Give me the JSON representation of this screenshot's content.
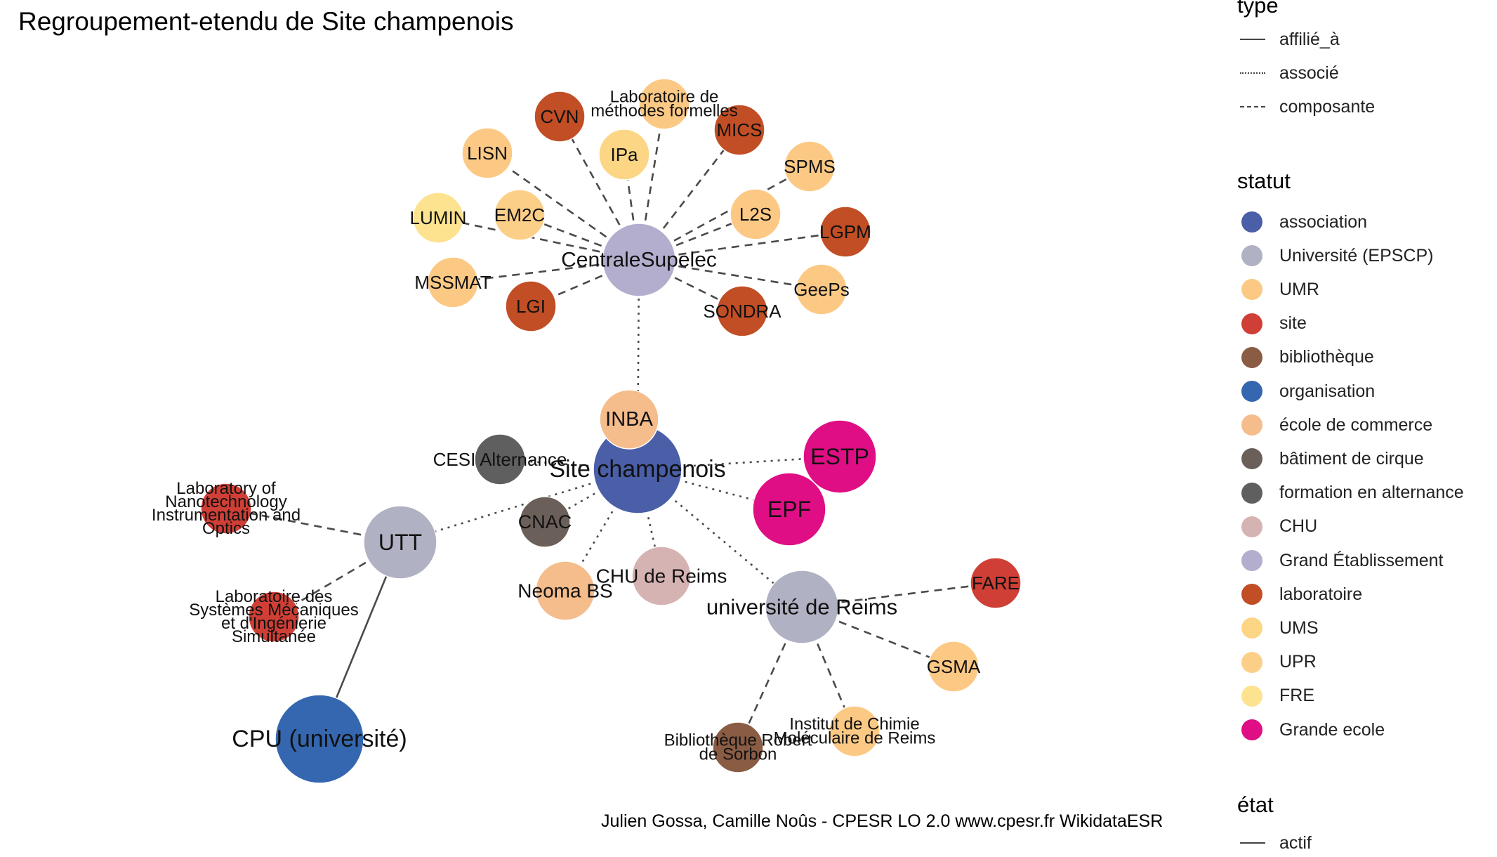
{
  "title": "Regroupement-etendu de Site champenois",
  "caption": "Julien Gossa, Camille Noûs - CPESR LO 2.0 www.cpesr.fr WikidataESR",
  "legend": {
    "type": {
      "title": "type",
      "items": [
        {
          "label": "affilié_à",
          "style": "solid"
        },
        {
          "label": "associé",
          "style": "dotted"
        },
        {
          "label": "composante",
          "style": "dashed"
        }
      ]
    },
    "statut": {
      "title": "statut",
      "items": [
        {
          "label": "association",
          "color": "#4a5fa8"
        },
        {
          "label": "Université (EPSCP)",
          "color": "#b0b1c2"
        },
        {
          "label": "UMR",
          "color": "#fcc985"
        },
        {
          "label": "site",
          "color": "#cf3f36"
        },
        {
          "label": "bibliothèque",
          "color": "#8a5c44"
        },
        {
          "label": "organisation",
          "color": "#3467b0"
        },
        {
          "label": "école de commerce",
          "color": "#f5bc8c"
        },
        {
          "label": "bâtiment de cirque",
          "color": "#6b5f59"
        },
        {
          "label": "formation en alternance",
          "color": "#5f5f5f"
        },
        {
          "label": "CHU",
          "color": "#d5b3b2"
        },
        {
          "label": "Grand Établissement",
          "color": "#b3aecd"
        },
        {
          "label": "laboratoire",
          "color": "#c24e25"
        },
        {
          "label": "UMS",
          "color": "#fcd585"
        },
        {
          "label": "UPR",
          "color": "#fccf88"
        },
        {
          "label": "FRE",
          "color": "#fde290"
        },
        {
          "label": "Grande ecole",
          "color": "#df0e84"
        }
      ]
    },
    "etat": {
      "title": "état",
      "items": [
        {
          "label": "actif",
          "style": "solid"
        }
      ]
    }
  },
  "nodes": [
    {
      "id": "site",
      "lines": [
        "Site champenois"
      ],
      "status": "association",
      "color": "#4a5fa8"
    },
    {
      "id": "centrale",
      "lines": [
        "CentraleSupelec"
      ],
      "status": "Grand Établissement",
      "color": "#b3aecd"
    },
    {
      "id": "utt",
      "lines": [
        "UTT"
      ],
      "status": "Université (EPSCP)",
      "color": "#b0b1c2"
    },
    {
      "id": "reims",
      "lines": [
        "université de Reims"
      ],
      "status": "Université (EPSCP)",
      "color": "#b0b1c2"
    },
    {
      "id": "cpu",
      "lines": [
        "CPU (université)"
      ],
      "status": "organisation",
      "color": "#3467b0"
    },
    {
      "id": "estp",
      "lines": [
        "ESTP"
      ],
      "status": "Grande ecole",
      "color": "#df0e84"
    },
    {
      "id": "epf",
      "lines": [
        "EPF"
      ],
      "status": "Grande ecole",
      "color": "#df0e84"
    },
    {
      "id": "inba",
      "lines": [
        "INBA"
      ],
      "status": "école de commerce",
      "color": "#f5bc8c"
    },
    {
      "id": "neoma",
      "lines": [
        "Neoma BS"
      ],
      "status": "école de commerce",
      "color": "#f5bc8c"
    },
    {
      "id": "chu",
      "lines": [
        "CHU de Reims"
      ],
      "status": "CHU",
      "color": "#d5b3b2"
    },
    {
      "id": "cnac",
      "lines": [
        "CNAC"
      ],
      "status": "bâtiment de cirque",
      "color": "#6b5f59"
    },
    {
      "id": "cesi",
      "lines": [
        "CESI Alternance"
      ],
      "status": "formation en alternance",
      "color": "#5f5f5f"
    },
    {
      "id": "lnio",
      "lines": [
        "Laboratory of",
        "Nanotechnology",
        "Instrumentation and",
        "Optics"
      ],
      "status": "site",
      "color": "#cf3f36"
    },
    {
      "id": "lasmis",
      "lines": [
        "Laboratoire des",
        "Systèmes Mécaniques",
        "et d'Ingénierie",
        "Simultanée"
      ],
      "status": "site",
      "color": "#cf3f36"
    },
    {
      "id": "fare",
      "lines": [
        "FARE"
      ],
      "status": "site",
      "color": "#cf3f36"
    },
    {
      "id": "gsma",
      "lines": [
        "GSMA"
      ],
      "status": "UMR",
      "color": "#fcc985"
    },
    {
      "id": "icmr",
      "lines": [
        "Institut de Chimie",
        "Moléculaire de Reims"
      ],
      "status": "UMR",
      "color": "#fcc985"
    },
    {
      "id": "biblio",
      "lines": [
        "Bibliothèque Robert",
        "de Sorbon"
      ],
      "status": "bibliothèque",
      "color": "#8a5c44"
    },
    {
      "id": "lmf",
      "lines": [
        "Laboratoire de",
        "méthodes formelles"
      ],
      "status": "UMR",
      "color": "#fcc985"
    },
    {
      "id": "cvn",
      "lines": [
        "CVN"
      ],
      "status": "laboratoire",
      "color": "#c24e25"
    },
    {
      "id": "mics",
      "lines": [
        "MICS"
      ],
      "status": "laboratoire",
      "color": "#c24e25"
    },
    {
      "id": "ipa",
      "lines": [
        "IPa"
      ],
      "status": "UMS",
      "color": "#fcd585"
    },
    {
      "id": "lisn",
      "lines": [
        "LISN"
      ],
      "status": "UMR",
      "color": "#fcc985"
    },
    {
      "id": "spms",
      "lines": [
        "SPMS"
      ],
      "status": "UMR",
      "color": "#fcc985"
    },
    {
      "id": "em2c",
      "lines": [
        "EM2C"
      ],
      "status": "UPR",
      "color": "#fccf88"
    },
    {
      "id": "l2s",
      "lines": [
        "L2S"
      ],
      "status": "UMR",
      "color": "#fcc985"
    },
    {
      "id": "lumin",
      "lines": [
        "LUMIN"
      ],
      "status": "FRE",
      "color": "#fde290"
    },
    {
      "id": "lgpm",
      "lines": [
        "LGPM"
      ],
      "status": "laboratoire",
      "color": "#c24e25"
    },
    {
      "id": "mssmat",
      "lines": [
        "MSSMAT"
      ],
      "status": "UMR",
      "color": "#fcc985"
    },
    {
      "id": "geeps",
      "lines": [
        "GeePs"
      ],
      "status": "UMR",
      "color": "#fcc985"
    },
    {
      "id": "lgi",
      "lines": [
        "LGI"
      ],
      "status": "laboratoire",
      "color": "#c24e25"
    },
    {
      "id": "sondra",
      "lines": [
        "SONDRA"
      ],
      "status": "laboratoire",
      "color": "#c24e25"
    }
  ],
  "edges": [
    {
      "from": "site",
      "to": "centrale",
      "type": "associé"
    },
    {
      "from": "site",
      "to": "utt",
      "type": "associé"
    },
    {
      "from": "site",
      "to": "reims",
      "type": "associé"
    },
    {
      "from": "site",
      "to": "estp",
      "type": "associé"
    },
    {
      "from": "site",
      "to": "epf",
      "type": "associé"
    },
    {
      "from": "site",
      "to": "inba",
      "type": "associé"
    },
    {
      "from": "site",
      "to": "neoma",
      "type": "associé"
    },
    {
      "from": "site",
      "to": "chu",
      "type": "associé"
    },
    {
      "from": "site",
      "to": "cnac",
      "type": "associé"
    },
    {
      "from": "site",
      "to": "cesi",
      "type": "associé"
    },
    {
      "from": "utt",
      "to": "cpu",
      "type": "affilié_à"
    },
    {
      "from": "utt",
      "to": "lnio",
      "type": "composante"
    },
    {
      "from": "utt",
      "to": "lasmis",
      "type": "composante"
    },
    {
      "from": "reims",
      "to": "fare",
      "type": "composante"
    },
    {
      "from": "reims",
      "to": "gsma",
      "type": "composante"
    },
    {
      "from": "reims",
      "to": "icmr",
      "type": "composante"
    },
    {
      "from": "reims",
      "to": "biblio",
      "type": "composante"
    },
    {
      "from": "centrale",
      "to": "lmf",
      "type": "composante"
    },
    {
      "from": "centrale",
      "to": "cvn",
      "type": "composante"
    },
    {
      "from": "centrale",
      "to": "mics",
      "type": "composante"
    },
    {
      "from": "centrale",
      "to": "ipa",
      "type": "composante"
    },
    {
      "from": "centrale",
      "to": "lisn",
      "type": "composante"
    },
    {
      "from": "centrale",
      "to": "spms",
      "type": "composante"
    },
    {
      "from": "centrale",
      "to": "em2c",
      "type": "composante"
    },
    {
      "from": "centrale",
      "to": "l2s",
      "type": "composante"
    },
    {
      "from": "centrale",
      "to": "lumin",
      "type": "composante"
    },
    {
      "from": "centrale",
      "to": "lgpm",
      "type": "composante"
    },
    {
      "from": "centrale",
      "to": "mssmat",
      "type": "composante"
    },
    {
      "from": "centrale",
      "to": "geeps",
      "type": "composante"
    },
    {
      "from": "centrale",
      "to": "lgi",
      "type": "composante"
    },
    {
      "from": "centrale",
      "to": "sondra",
      "type": "composante"
    }
  ]
}
